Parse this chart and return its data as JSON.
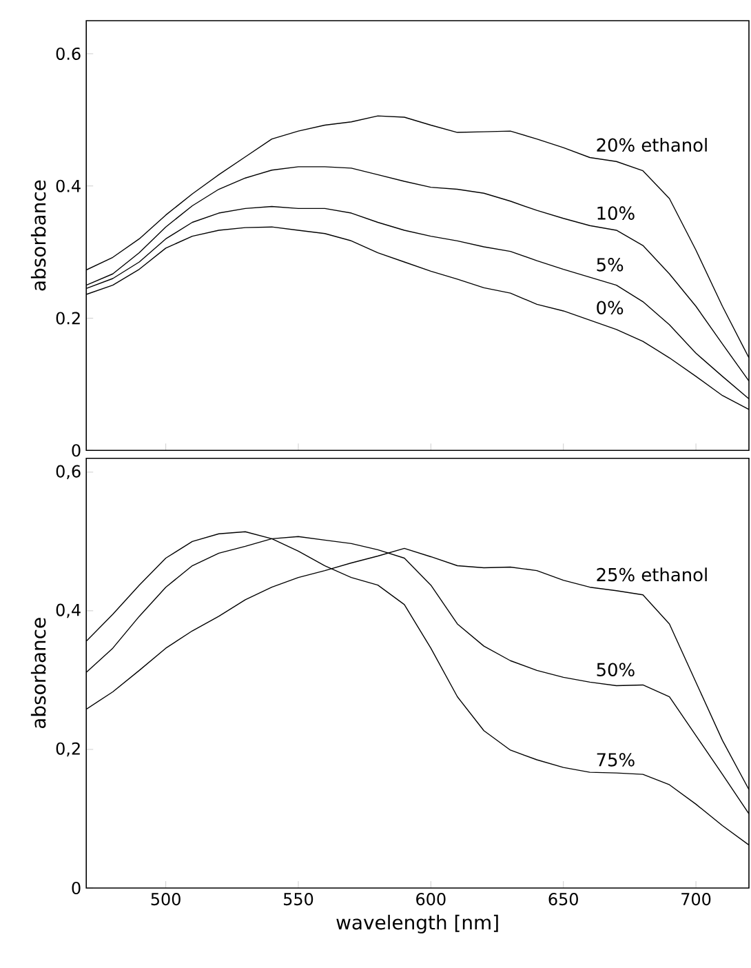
{
  "chart_data": [
    {
      "type": "line",
      "ylabel": "absorbance",
      "tick_labels": "y",
      "x": [
        470,
        480,
        490,
        500,
        510,
        520,
        530,
        540,
        550,
        560,
        570,
        580,
        590,
        600,
        610,
        620,
        630,
        640,
        650,
        660,
        670,
        680,
        690,
        700,
        710,
        720
      ],
      "xlim": [
        470,
        720
      ],
      "ylim": [
        0,
        0.65
      ],
      "xticks": [
        500,
        550,
        600,
        650,
        700
      ],
      "yticks": [
        0,
        0.2,
        0.4,
        0.6
      ],
      "series": [
        {
          "name": "20% ethanol",
          "color": "#000000",
          "values": [
            0.273,
            0.292,
            0.32,
            0.356,
            0.388,
            0.417,
            0.444,
            0.471,
            0.483,
            0.492,
            0.497,
            0.506,
            0.504,
            0.492,
            0.481,
            0.482,
            0.483,
            0.471,
            0.458,
            0.443,
            0.437,
            0.423,
            0.381,
            0.303,
            0.218,
            0.14
          ]
        },
        {
          "name": "10%",
          "color": "#000000",
          "values": [
            0.25,
            0.267,
            0.299,
            0.338,
            0.37,
            0.395,
            0.412,
            0.424,
            0.429,
            0.429,
            0.427,
            0.417,
            0.407,
            0.398,
            0.395,
            0.389,
            0.377,
            0.363,
            0.351,
            0.34,
            0.333,
            0.31,
            0.267,
            0.218,
            0.161,
            0.105
          ]
        },
        {
          "name": "5%",
          "color": "#000000",
          "values": [
            0.245,
            0.26,
            0.285,
            0.32,
            0.345,
            0.359,
            0.366,
            0.369,
            0.366,
            0.366,
            0.359,
            0.345,
            0.333,
            0.324,
            0.317,
            0.308,
            0.301,
            0.287,
            0.274,
            0.262,
            0.25,
            0.225,
            0.19,
            0.147,
            0.112,
            0.078
          ]
        },
        {
          "name": "0%",
          "color": "#000000",
          "values": [
            0.236,
            0.25,
            0.274,
            0.306,
            0.324,
            0.333,
            0.337,
            0.338,
            0.333,
            0.328,
            0.317,
            0.299,
            0.285,
            0.271,
            0.259,
            0.246,
            0.238,
            0.221,
            0.211,
            0.197,
            0.183,
            0.165,
            0.14,
            0.112,
            0.083,
            0.062
          ]
        }
      ]
    },
    {
      "type": "line",
      "xlabel": "wavelength [nm]",
      "ylabel": "absorbance",
      "x": [
        470,
        480,
        490,
        500,
        510,
        520,
        530,
        540,
        550,
        560,
        570,
        580,
        590,
        600,
        610,
        620,
        630,
        640,
        650,
        660,
        670,
        680,
        690,
        700,
        710,
        720
      ],
      "xlim": [
        470,
        720
      ],
      "ylim": [
        0,
        0.62
      ],
      "xticks": [
        500,
        550,
        600,
        650,
        700
      ],
      "yticks": [
        0,
        {
          "value": 0.2,
          "label": "0,2"
        },
        {
          "value": 0.4,
          "label": "0,4"
        },
        {
          "value": 0.6,
          "label": "0,6"
        }
      ],
      "series": [
        {
          "name": "25% ethanol",
          "color": "#000000",
          "values": [
            0.258,
            0.283,
            0.314,
            0.346,
            0.371,
            0.392,
            0.416,
            0.434,
            0.448,
            0.458,
            0.469,
            0.479,
            0.49,
            0.478,
            0.465,
            0.462,
            0.463,
            0.458,
            0.444,
            0.434,
            0.429,
            0.423,
            0.381,
            0.297,
            0.213,
            0.142
          ]
        },
        {
          "name": "50%",
          "color": "#000000",
          "values": [
            0.311,
            0.346,
            0.392,
            0.434,
            0.465,
            0.483,
            0.493,
            0.504,
            0.507,
            0.502,
            0.497,
            0.488,
            0.476,
            0.437,
            0.381,
            0.349,
            0.328,
            0.314,
            0.304,
            0.297,
            0.292,
            0.293,
            0.276,
            0.22,
            0.164,
            0.107
          ]
        },
        {
          "name": "75%",
          "color": "#000000",
          "values": [
            0.356,
            0.395,
            0.437,
            0.476,
            0.5,
            0.511,
            0.514,
            0.504,
            0.486,
            0.465,
            0.448,
            0.437,
            0.409,
            0.346,
            0.276,
            0.227,
            0.199,
            0.185,
            0.174,
            0.167,
            0.166,
            0.164,
            0.149,
            0.121,
            0.09,
            0.062
          ]
        }
      ]
    }
  ]
}
